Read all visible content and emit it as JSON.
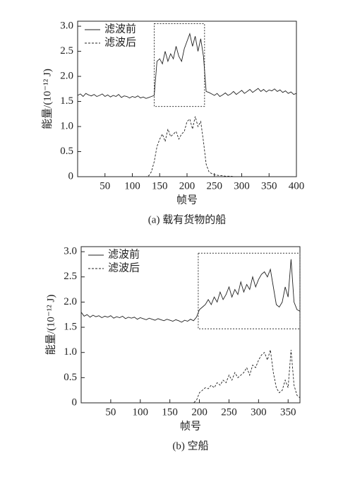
{
  "chart_data": [
    {
      "type": "line",
      "xlabel": "帧号",
      "ylabel": "能量/(10⁻¹² J)",
      "caption": "(a)  载有货物的船",
      "xlim": [
        0,
        400
      ],
      "ylim": [
        0,
        3.1
      ],
      "xticks": [
        50,
        100,
        150,
        200,
        250,
        300,
        350,
        400
      ],
      "yticks": [
        0,
        0.5,
        {
          "value": 1,
          "label": "1.0"
        },
        1.5,
        {
          "value": 2,
          "label": "2.0"
        },
        2.5,
        {
          "value": 3,
          "label": "3.0"
        }
      ],
      "legend": "upper left",
      "highlight": {
        "x": [
          140,
          232
        ],
        "y": [
          1.4,
          3.05
        ]
      },
      "x": [
        0,
        5,
        10,
        15,
        20,
        25,
        30,
        35,
        40,
        45,
        50,
        55,
        60,
        65,
        70,
        75,
        80,
        85,
        90,
        95,
        100,
        105,
        110,
        115,
        120,
        125,
        130,
        135,
        140,
        145,
        150,
        155,
        160,
        165,
        170,
        175,
        180,
        185,
        190,
        195,
        200,
        205,
        210,
        215,
        220,
        225,
        230,
        235,
        240,
        245,
        250,
        255,
        260,
        265,
        270,
        275,
        280,
        285,
        290,
        295,
        300,
        305,
        310,
        315,
        320,
        325,
        330,
        335,
        340,
        345,
        350,
        355,
        360,
        365,
        370,
        375,
        380,
        385,
        390,
        395,
        400
      ],
      "series": [
        {
          "name": "滤波前",
          "color": "#222222",
          "style": "solid",
          "values": [
            1.62,
            1.65,
            1.6,
            1.66,
            1.63,
            1.61,
            1.64,
            1.6,
            1.62,
            1.65,
            1.6,
            1.63,
            1.59,
            1.62,
            1.6,
            1.64,
            1.58,
            1.61,
            1.6,
            1.57,
            1.6,
            1.58,
            1.61,
            1.57,
            1.59,
            1.56,
            1.58,
            1.6,
            1.62,
            2.3,
            2.35,
            2.25,
            2.5,
            2.3,
            2.45,
            2.35,
            2.6,
            2.4,
            2.3,
            2.55,
            2.7,
            2.85,
            2.6,
            2.8,
            2.5,
            2.75,
            2.4,
            1.7,
            1.68,
            1.65,
            1.62,
            1.66,
            1.6,
            1.63,
            1.67,
            1.62,
            1.65,
            1.7,
            1.64,
            1.68,
            1.72,
            1.66,
            1.7,
            1.74,
            1.68,
            1.72,
            1.76,
            1.7,
            1.74,
            1.69,
            1.73,
            1.71,
            1.75,
            1.7,
            1.73,
            1.68,
            1.71,
            1.66,
            1.69,
            1.64,
            1.66
          ]
        },
        {
          "name": "滤波后",
          "color": "#222222",
          "style": "dashed",
          "values": [
            0,
            0,
            0,
            0,
            0,
            0,
            0,
            0,
            0,
            0,
            0,
            0,
            0,
            0,
            0,
            0,
            0,
            0,
            0,
            0,
            0,
            0,
            0,
            0,
            0,
            0,
            0.02,
            0.1,
            0.3,
            0.6,
            0.75,
            0.85,
            0.7,
            0.95,
            0.8,
            0.85,
            0.9,
            0.75,
            0.85,
            0.9,
            1.1,
            1.15,
            0.95,
            1.2,
            1.0,
            1.1,
            0.7,
            0.25,
            0.1,
            0.06,
            0.04,
            0.03,
            0.02,
            0.02,
            0.01,
            0.01,
            0.01,
            0,
            0,
            0,
            0,
            0,
            0,
            0,
            0,
            0,
            0,
            0,
            0,
            0,
            0,
            0,
            0,
            0,
            0,
            0,
            0,
            0,
            0,
            0,
            0
          ]
        }
      ]
    },
    {
      "type": "line",
      "xlabel": "帧号",
      "ylabel": "能量/(10⁻¹² J)",
      "caption": "(b)  空船",
      "xlim": [
        0,
        370
      ],
      "ylim": [
        0,
        3.1
      ],
      "xticks": [
        50,
        100,
        150,
        200,
        250,
        300,
        350
      ],
      "yticks": [
        0,
        0.5,
        {
          "value": 1,
          "label": "1.0"
        },
        1.5,
        {
          "value": 2,
          "label": "2.0"
        },
        2.5,
        {
          "value": 3,
          "label": "3.0"
        }
      ],
      "legend": "upper left",
      "highlight": {
        "x": [
          198,
          370
        ],
        "y": [
          1.47,
          2.97
        ]
      },
      "x": [
        0,
        5,
        10,
        15,
        20,
        25,
        30,
        35,
        40,
        45,
        50,
        55,
        60,
        65,
        70,
        75,
        80,
        85,
        90,
        95,
        100,
        105,
        110,
        115,
        120,
        125,
        130,
        135,
        140,
        145,
        150,
        155,
        160,
        165,
        170,
        175,
        180,
        185,
        190,
        195,
        200,
        205,
        210,
        215,
        220,
        225,
        230,
        235,
        240,
        245,
        250,
        255,
        260,
        265,
        270,
        275,
        280,
        285,
        290,
        295,
        300,
        305,
        310,
        315,
        320,
        325,
        330,
        335,
        340,
        345,
        350,
        355,
        360,
        365,
        370
      ],
      "series": [
        {
          "name": "滤波前",
          "color": "#222222",
          "style": "solid",
          "values": [
            1.8,
            1.72,
            1.75,
            1.7,
            1.74,
            1.71,
            1.73,
            1.69,
            1.72,
            1.7,
            1.73,
            1.68,
            1.71,
            1.69,
            1.72,
            1.67,
            1.7,
            1.68,
            1.7,
            1.66,
            1.69,
            1.67,
            1.65,
            1.68,
            1.66,
            1.64,
            1.67,
            1.65,
            1.63,
            1.66,
            1.64,
            1.62,
            1.65,
            1.63,
            1.6,
            1.64,
            1.62,
            1.66,
            1.63,
            1.7,
            1.85,
            1.9,
            1.95,
            2.05,
            1.95,
            2.1,
            2.0,
            2.2,
            2.05,
            2.15,
            2.3,
            2.1,
            2.25,
            2.15,
            2.4,
            2.2,
            2.35,
            2.25,
            2.5,
            2.3,
            2.45,
            2.55,
            2.6,
            2.5,
            2.65,
            2.3,
            1.95,
            1.9,
            2.0,
            2.3,
            2.1,
            2.85,
            2.0,
            1.85,
            1.82
          ]
        },
        {
          "name": "滤波后",
          "color": "#222222",
          "style": "dashed",
          "values": [
            0,
            0,
            0,
            0,
            0,
            0,
            0,
            0,
            0,
            0,
            0,
            0,
            0,
            0,
            0,
            0,
            0,
            0,
            0,
            0,
            0,
            0,
            0,
            0,
            0,
            0,
            0,
            0,
            0,
            0,
            0,
            0,
            0,
            0,
            0,
            0,
            0,
            0,
            0,
            0.05,
            0.2,
            0.25,
            0.3,
            0.28,
            0.35,
            0.3,
            0.4,
            0.35,
            0.45,
            0.4,
            0.55,
            0.45,
            0.6,
            0.5,
            0.55,
            0.6,
            0.7,
            0.55,
            0.75,
            0.7,
            0.85,
            0.95,
            1.0,
            0.85,
            1.05,
            0.6,
            0.3,
            0.2,
            0.25,
            0.45,
            0.3,
            1.05,
            0.35,
            0.15,
            0.1
          ]
        }
      ]
    }
  ]
}
